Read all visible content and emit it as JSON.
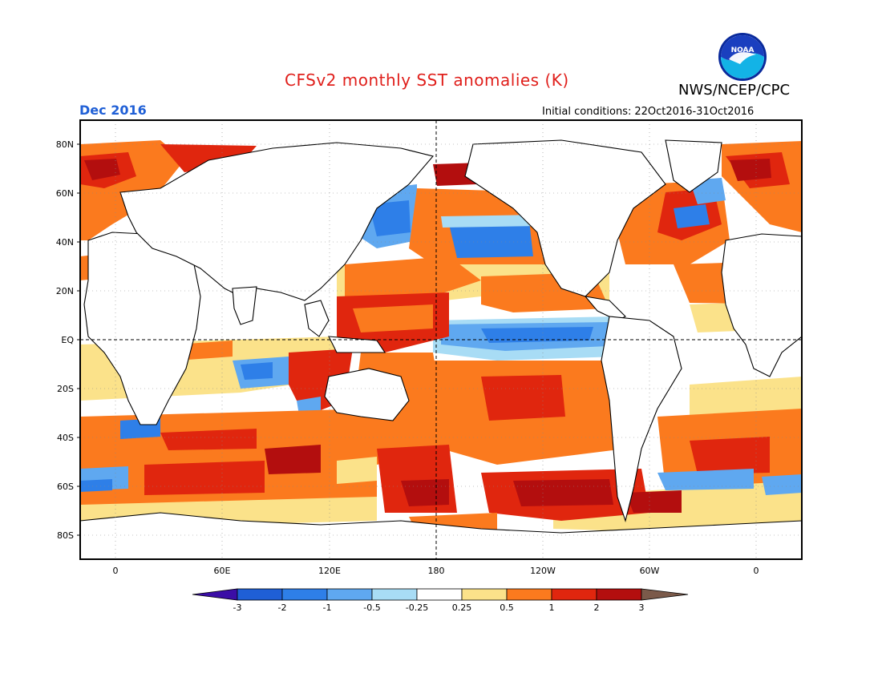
{
  "header": {
    "title": "CFSv2 monthly SST anomalies (K)",
    "agency": "NWS/NCEP/CPC",
    "month": "Dec 2016",
    "initial_label": "Initial conditions:",
    "initial_value": "22Oct2016-31Oct2016",
    "logo_text": "NOAA"
  },
  "axes": {
    "lat_labels": [
      "80N",
      "60N",
      "40N",
      "20N",
      "EQ",
      "20S",
      "40S",
      "60S",
      "80S"
    ],
    "lon_labels": [
      "0",
      "60E",
      "120E",
      "180",
      "120W",
      "60W",
      "0"
    ]
  },
  "colorbar": {
    "labels": [
      "-3",
      "-2",
      "-1",
      "-0.5",
      "-0.25",
      "0.25",
      "0.5",
      "1",
      "2",
      "3"
    ],
    "colors": [
      "#3b0ea6",
      "#1f5fd6",
      "#2e7fe8",
      "#5fa8f0",
      "#a8dcf5",
      "#ffffff",
      "#fbe28a",
      "#fb7a1e",
      "#e0260e",
      "#b30e0e",
      "#7b5a4a"
    ]
  },
  "legend_colors": {
    "warm_strong": "#b30e0e",
    "warm": "#e0260e",
    "warm_mild": "#fb7a1e",
    "warm_weak": "#fbe28a",
    "cool_weak": "#a8dcf5",
    "cool": "#5fa8f0",
    "cool_strong": "#2e7fe8"
  }
}
